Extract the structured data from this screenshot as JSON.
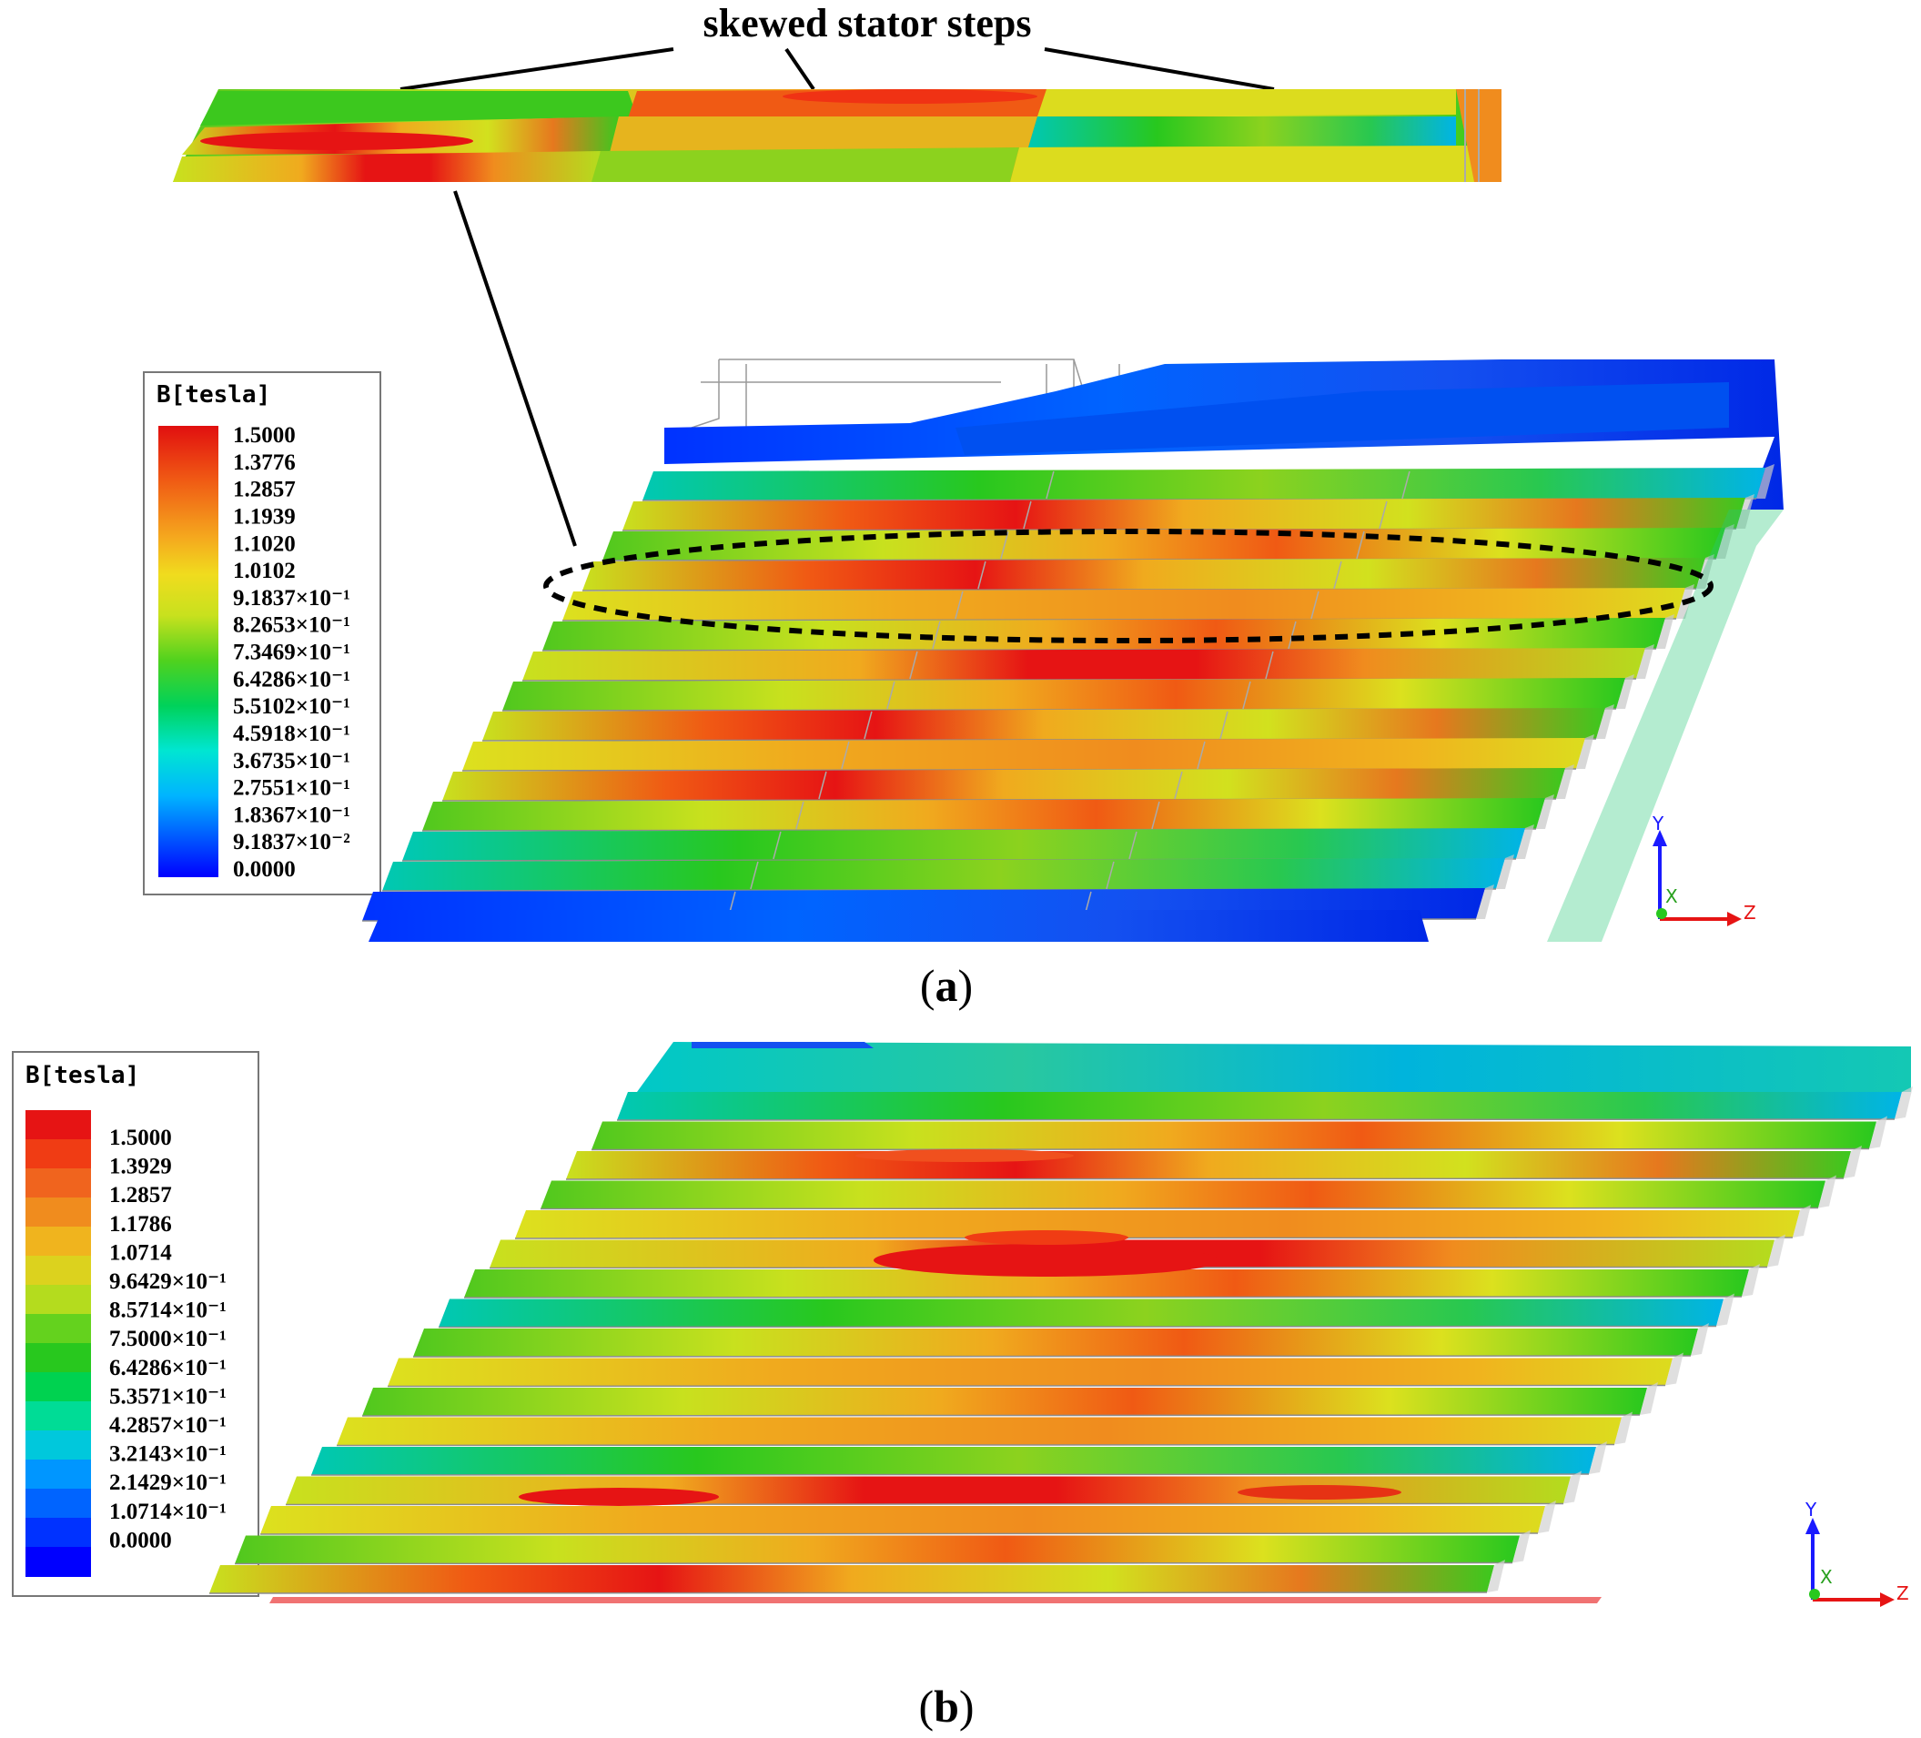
{
  "callout": {
    "text": "skewed stator steps"
  },
  "panel_a": {
    "caption_open": "(",
    "caption_letter": "a",
    "caption_close": ")",
    "legend": {
      "title": "B[tesla]",
      "labels": [
        "1.5000",
        "1.3776",
        "1.2857",
        "1.1939",
        "1.1020",
        "1.0102",
        "9.1837×10⁻¹",
        "8.2653×10⁻¹",
        "7.3469×10⁻¹",
        "6.4286×10⁻¹",
        "5.5102×10⁻¹",
        "4.5918×10⁻¹",
        "3.6735×10⁻¹",
        "2.7551×10⁻¹",
        "1.8367×10⁻¹",
        "9.1837×10⁻²",
        "0.0000"
      ]
    },
    "axes": {
      "y": "Y",
      "x": "X",
      "z": "Z"
    }
  },
  "panel_b": {
    "caption_open": "(",
    "caption_letter": "b",
    "caption_close": ")",
    "legend": {
      "title": "B[tesla]",
      "labels": [
        "1.5000",
        "1.3929",
        "1.2857",
        "1.1786",
        "1.0714",
        "9.6429×10⁻¹",
        "8.5714×10⁻¹",
        "7.5000×10⁻¹",
        "6.4286×10⁻¹",
        "5.3571×10⁻¹",
        "4.2857×10⁻¹",
        "3.2143×10⁻¹",
        "2.1429×10⁻¹",
        "1.0714×10⁻¹",
        "0.0000"
      ]
    },
    "axes": {
      "y": "Y",
      "x": "X",
      "z": "Z"
    }
  },
  "colors": {
    "scale": [
      "#0000ff",
      "#0060ff",
      "#00b4ff",
      "#00e6d2",
      "#00d25a",
      "#28c81e",
      "#7ad21a",
      "#c8e11e",
      "#f0dc1e",
      "#f5aa1e",
      "#f07814",
      "#e63c14",
      "#e10f0f"
    ],
    "callout_line": "#000000",
    "ellipse": "#000000"
  }
}
